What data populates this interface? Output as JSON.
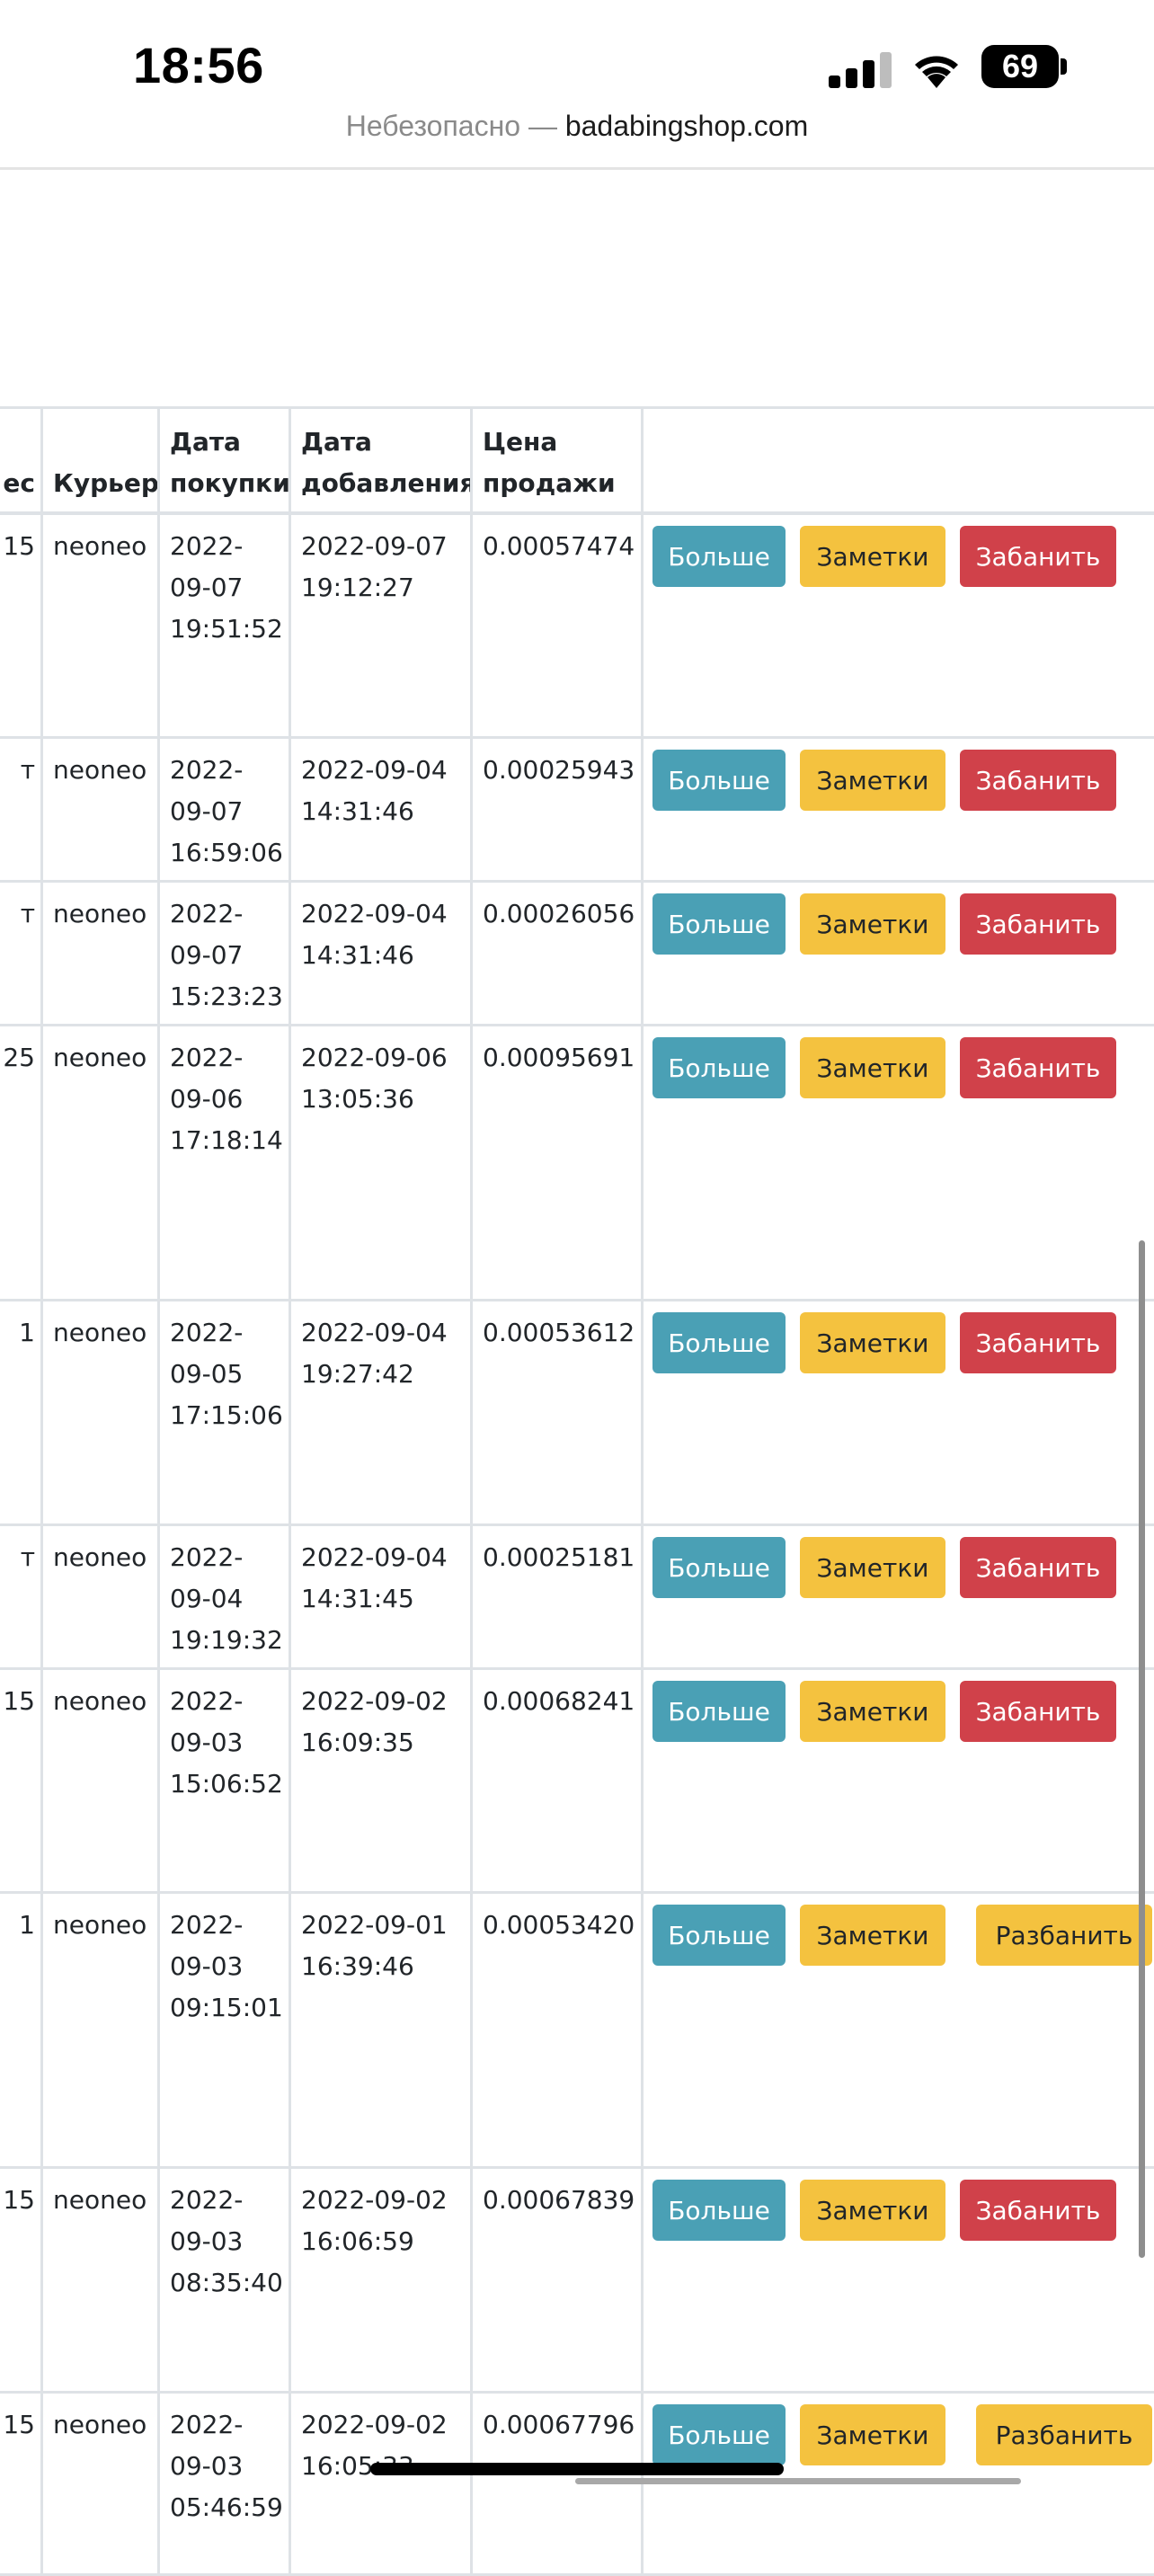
{
  "status_bar": {
    "time": "18:56",
    "battery": "69",
    "icons": [
      "signal-icon",
      "wifi-icon",
      "battery-icon"
    ]
  },
  "browser": {
    "insecure_label": "Небезопасно —",
    "domain": "badabingshop.com"
  },
  "table": {
    "headers": {
      "col0": "ес",
      "courier": "Курьер",
      "purchase_date": "Дата покупки",
      "added_date": "Дата добавления",
      "sale_price": "Цена продажи"
    },
    "buttons": {
      "more": "Больше",
      "notes": "Заметки",
      "ban": "Забанить",
      "unban": "Разбанить"
    },
    "rows": [
      {
        "col0": "15",
        "courier": "neoneo",
        "purchase_date": "2022-09-07 19:51:52",
        "added_date": "2022-09-07 19:12:27",
        "price": "0.00057474",
        "action": "ban"
      },
      {
        "col0": "т",
        "courier": "neoneo",
        "purchase_date": "2022-09-07 16:59:06",
        "added_date": "2022-09-04 14:31:46",
        "price": "0.00025943",
        "action": "ban"
      },
      {
        "col0": "т",
        "courier": "neoneo",
        "purchase_date": "2022-09-07 15:23:23",
        "added_date": "2022-09-04 14:31:46",
        "price": "0.00026056",
        "action": "ban"
      },
      {
        "col0": "25",
        "courier": "neoneo",
        "purchase_date": "2022-09-06 17:18:14",
        "added_date": "2022-09-06 13:05:36",
        "price": "0.00095691",
        "action": "ban"
      },
      {
        "col0": "1",
        "courier": "neoneo",
        "purchase_date": "2022-09-05 17:15:06",
        "added_date": "2022-09-04 19:27:42",
        "price": "0.00053612",
        "action": "ban"
      },
      {
        "col0": "т",
        "courier": "neoneo",
        "purchase_date": "2022-09-04 19:19:32",
        "added_date": "2022-09-04 14:31:45",
        "price": "0.00025181",
        "action": "ban"
      },
      {
        "col0": "15",
        "courier": "neoneo",
        "purchase_date": "2022-09-03 15:06:52",
        "added_date": "2022-09-02 16:09:35",
        "price": "0.00068241",
        "action": "ban"
      },
      {
        "col0": "1",
        "courier": "neoneo",
        "purchase_date": "2022-09-03 09:15:01",
        "added_date": "2022-09-01 16:39:46",
        "price": "0.00053420",
        "action": "unban"
      },
      {
        "col0": "15",
        "courier": "neoneo",
        "purchase_date": "2022-09-03 08:35:40",
        "added_date": "2022-09-02 16:06:59",
        "price": "0.00067839",
        "action": "ban"
      },
      {
        "col0": "15",
        "courier": "neoneo",
        "purchase_date": "2022-09-03 05:46:59",
        "added_date": "2022-09-02 16:05:33",
        "price": "0.00067796",
        "action": "unban"
      }
    ]
  }
}
